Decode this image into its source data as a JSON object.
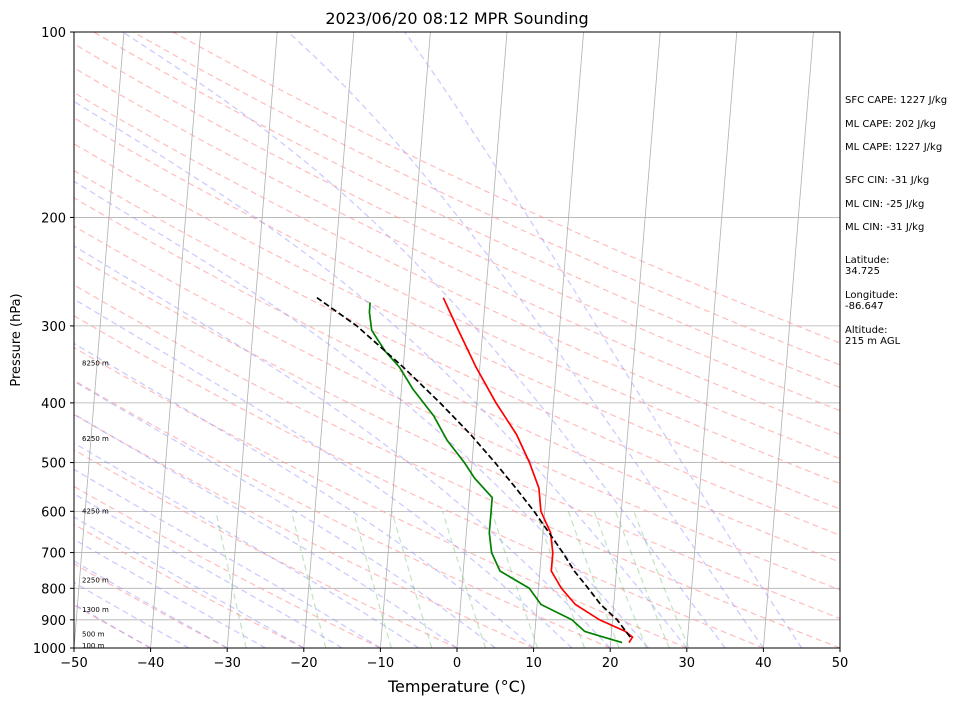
{
  "chart_data": {
    "type": "line",
    "title": "2023/06/20 08:12 MPR Sounding",
    "xlabel": "Temperature (°C)",
    "ylabel": "Pressure (hPa)",
    "xlim": [
      -50,
      50
    ],
    "ylim": [
      1000,
      100
    ],
    "y_scale": "log",
    "skew": true,
    "grid": true,
    "x_ticks": [
      "−50",
      "−40",
      "−30",
      "−20",
      "−10",
      "0",
      "10",
      "20",
      "30",
      "40",
      "50"
    ],
    "y_ticks": [
      "100",
      "200",
      "300",
      "400",
      "500",
      "600",
      "700",
      "800",
      "900",
      "1000"
    ],
    "height_labels": [
      {
        "label": "100 m",
        "p": 993
      },
      {
        "label": "500 m",
        "p": 950
      },
      {
        "label": "1300 m",
        "p": 868
      },
      {
        "label": "2250 m",
        "p": 777
      },
      {
        "label": "4250 m",
        "p": 600
      },
      {
        "label": "6250 m",
        "p": 458
      },
      {
        "label": "8250 m",
        "p": 345
      }
    ],
    "series": [
      {
        "key": "temperature",
        "color": "#ff0000",
        "style": "solid",
        "points": [
          [
            22.4,
            980
          ],
          [
            22.8,
            960
          ],
          [
            21.8,
            940
          ],
          [
            18.3,
            900
          ],
          [
            15.0,
            850
          ],
          [
            13.0,
            800
          ],
          [
            11.5,
            750
          ],
          [
            11.5,
            700
          ],
          [
            11.0,
            650
          ],
          [
            9.5,
            600
          ],
          [
            9.0,
            550
          ],
          [
            7.5,
            500
          ],
          [
            5.5,
            450
          ],
          [
            2.5,
            400
          ],
          [
            -0.5,
            350
          ],
          [
            -3.5,
            300
          ],
          [
            -5.5,
            270
          ]
        ]
      },
      {
        "key": "dewpoint",
        "color": "#008000",
        "style": "solid",
        "points": [
          [
            21.5,
            980
          ],
          [
            19.0,
            960
          ],
          [
            16.5,
            940
          ],
          [
            14.7,
            900
          ],
          [
            10.5,
            850
          ],
          [
            8.8,
            800
          ],
          [
            4.8,
            750
          ],
          [
            3.5,
            700
          ],
          [
            3.0,
            650
          ],
          [
            3.0,
            600
          ],
          [
            3.0,
            570
          ],
          [
            0.5,
            530
          ],
          [
            -1.0,
            500
          ],
          [
            -3.5,
            460
          ],
          [
            -5.5,
            420
          ],
          [
            -8.5,
            380
          ],
          [
            -10.5,
            350
          ],
          [
            -12.5,
            330
          ],
          [
            -14.5,
            305
          ],
          [
            -15.0,
            285
          ],
          [
            -15.0,
            275
          ]
        ]
      },
      {
        "key": "parcel",
        "color": "#000000",
        "style": "dashed",
        "points": [
          [
            22.5,
            960
          ],
          [
            20.6,
            900
          ],
          [
            18.3,
            850
          ],
          [
            16.5,
            800
          ],
          [
            14.5,
            750
          ],
          [
            12.8,
            700
          ],
          [
            10.8,
            650
          ],
          [
            8.6,
            600
          ],
          [
            6.0,
            550
          ],
          [
            3.0,
            500
          ],
          [
            -0.5,
            450
          ],
          [
            -4.8,
            400
          ],
          [
            -10.0,
            350
          ],
          [
            -16.5,
            300
          ],
          [
            -22.0,
            270
          ]
        ]
      }
    ]
  },
  "info_panel": {
    "sfc_cape": "SFC CAPE: 1227 J/kg",
    "ml_cape_1": "ML CAPE: 202 J/kg",
    "ml_cape_2": "ML CAPE: 1227 J/kg",
    "sfc_cin": "SFC CIN: -31 J/kg",
    "ml_cin_1": "ML CIN: -25 J/kg",
    "ml_cin_2": "ML CIN: -31 J/kg",
    "latitude_label": "Latitude:",
    "latitude_value": "34.725",
    "longitude_label": "Longitude:",
    "longitude_value": "-86.647",
    "altitude_label": "Altitude:",
    "altitude_value": "215 m AGL"
  }
}
